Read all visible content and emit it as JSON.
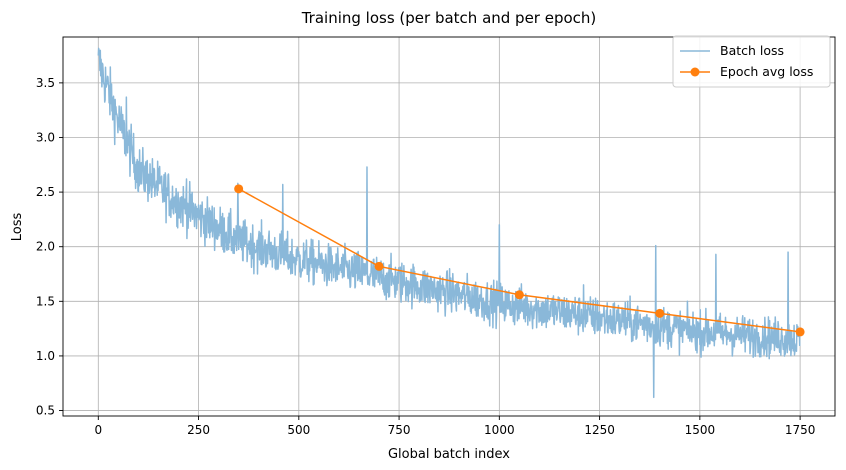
{
  "chart_data": {
    "type": "line",
    "title": "Training loss (per batch and per epoch)",
    "xlabel": "Global batch index",
    "ylabel": "Loss",
    "xlim": [
      -88,
      1837
    ],
    "ylim": [
      0.45,
      3.92
    ],
    "xticks": [
      0,
      250,
      500,
      750,
      1000,
      1250,
      1500,
      1750
    ],
    "yticks": [
      0.5,
      1.0,
      1.5,
      2.0,
      2.5,
      3.0,
      3.5
    ],
    "xtick_labels": [
      "0",
      "250",
      "500",
      "750",
      "1000",
      "1250",
      "1500",
      "1750"
    ],
    "ytick_labels": [
      "0.5",
      "1.0",
      "1.5",
      "2.0",
      "2.5",
      "3.0",
      "3.5"
    ],
    "grid": true,
    "legend_position": "top-right",
    "series": [
      {
        "name": "Batch loss",
        "color": "#8ab8d9",
        "style": "line",
        "n_points": 1750,
        "start_value": 3.75,
        "trend": [
          [
            0,
            3.7
          ],
          [
            50,
            3.15
          ],
          [
            100,
            2.7
          ],
          [
            200,
            2.4
          ],
          [
            350,
            2.05
          ],
          [
            500,
            1.88
          ],
          [
            700,
            1.72
          ],
          [
            1000,
            1.48
          ],
          [
            1250,
            1.35
          ],
          [
            1500,
            1.22
          ],
          [
            1750,
            1.15
          ]
        ],
        "noise_amplitude": 0.15,
        "min_value": 0.62,
        "notable_peaks": [
          [
            70,
            3.37
          ],
          [
            220,
            2.62
          ],
          [
            348,
            2.58
          ],
          [
            460,
            2.57
          ],
          [
            670,
            2.73
          ],
          [
            1000,
            2.2
          ],
          [
            1210,
            1.65
          ],
          [
            1390,
            2.01
          ],
          [
            1540,
            1.93
          ],
          [
            1720,
            1.95
          ]
        ]
      },
      {
        "name": "Epoch avg loss",
        "color": "#ff7f0e",
        "style": "line-marker",
        "x": [
          350,
          700,
          1050,
          1400,
          1750
        ],
        "y": [
          2.53,
          1.82,
          1.56,
          1.39,
          1.22
        ]
      }
    ]
  }
}
